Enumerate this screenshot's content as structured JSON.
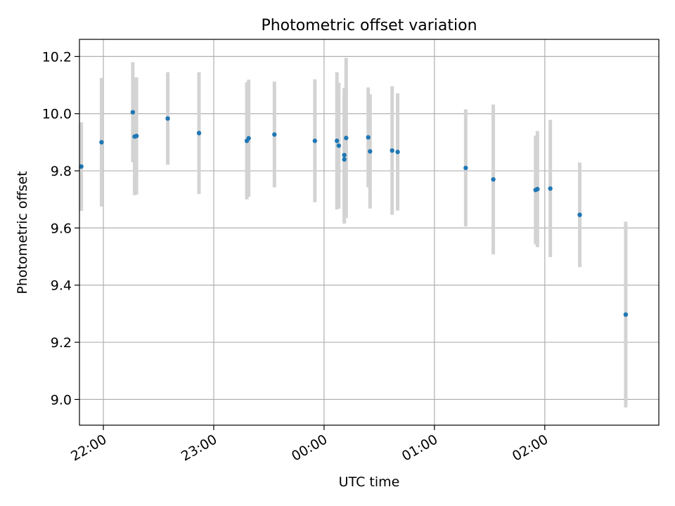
{
  "chart_data": {
    "type": "scatter",
    "title": "Photometric offset variation",
    "xlabel": "UTC time",
    "ylabel": "Photometric offset",
    "x_is_time": true,
    "xlim": [
      "21:47",
      "03:02"
    ],
    "ylim": [
      8.91,
      10.26
    ],
    "x_ticks": [
      "22:00",
      "23:00",
      "00:00",
      "01:00",
      "02:00"
    ],
    "y_ticks": [
      9.0,
      9.2,
      9.4,
      9.6,
      9.8,
      10.0,
      10.2
    ],
    "grid": true,
    "legend": "none",
    "colors": {
      "point": "#1f77b4",
      "errorbar": "#d3d3d3",
      "grid": "#b0b0b0"
    },
    "points": [
      {
        "x": "21:48",
        "y": 9.815,
        "err": 0.155
      },
      {
        "x": "21:59",
        "y": 9.9,
        "err": 0.225
      },
      {
        "x": "22:16",
        "y": 10.005,
        "err": 0.175
      },
      {
        "x": "22:17",
        "y": 9.92,
        "err": 0.205
      },
      {
        "x": "22:18",
        "y": 9.922,
        "err": 0.205
      },
      {
        "x": "22:35",
        "y": 9.983,
        "err": 0.162
      },
      {
        "x": "22:52",
        "y": 9.932,
        "err": 0.213
      },
      {
        "x": "23:18",
        "y": 9.905,
        "err": 0.205
      },
      {
        "x": "23:19",
        "y": 9.914,
        "err": 0.205
      },
      {
        "x": "23:33",
        "y": 9.927,
        "err": 0.185
      },
      {
        "x": "23:55",
        "y": 9.905,
        "err": 0.215
      },
      {
        "x": "00:07",
        "y": 9.905,
        "err": 0.24
      },
      {
        "x": "00:08",
        "y": 9.888,
        "err": 0.22
      },
      {
        "x": "00:11",
        "y": 9.84,
        "err": 0.225
      },
      {
        "x": "00:11",
        "y": 9.855,
        "err": 0.235
      },
      {
        "x": "00:12",
        "y": 9.915,
        "err": 0.28
      },
      {
        "x": "00:24",
        "y": 9.917,
        "err": 0.175
      },
      {
        "x": "00:25",
        "y": 9.868,
        "err": 0.2
      },
      {
        "x": "00:37",
        "y": 9.871,
        "err": 0.225
      },
      {
        "x": "00:40",
        "y": 9.866,
        "err": 0.205
      },
      {
        "x": "01:17",
        "y": 9.81,
        "err": 0.205
      },
      {
        "x": "01:32",
        "y": 9.77,
        "err": 0.262
      },
      {
        "x": "01:55",
        "y": 9.733,
        "err": 0.19
      },
      {
        "x": "01:56",
        "y": 9.736,
        "err": 0.203
      },
      {
        "x": "02:03",
        "y": 9.738,
        "err": 0.24
      },
      {
        "x": "02:19",
        "y": 9.646,
        "err": 0.183
      },
      {
        "x": "02:44",
        "y": 9.297,
        "err": 0.325
      }
    ]
  }
}
